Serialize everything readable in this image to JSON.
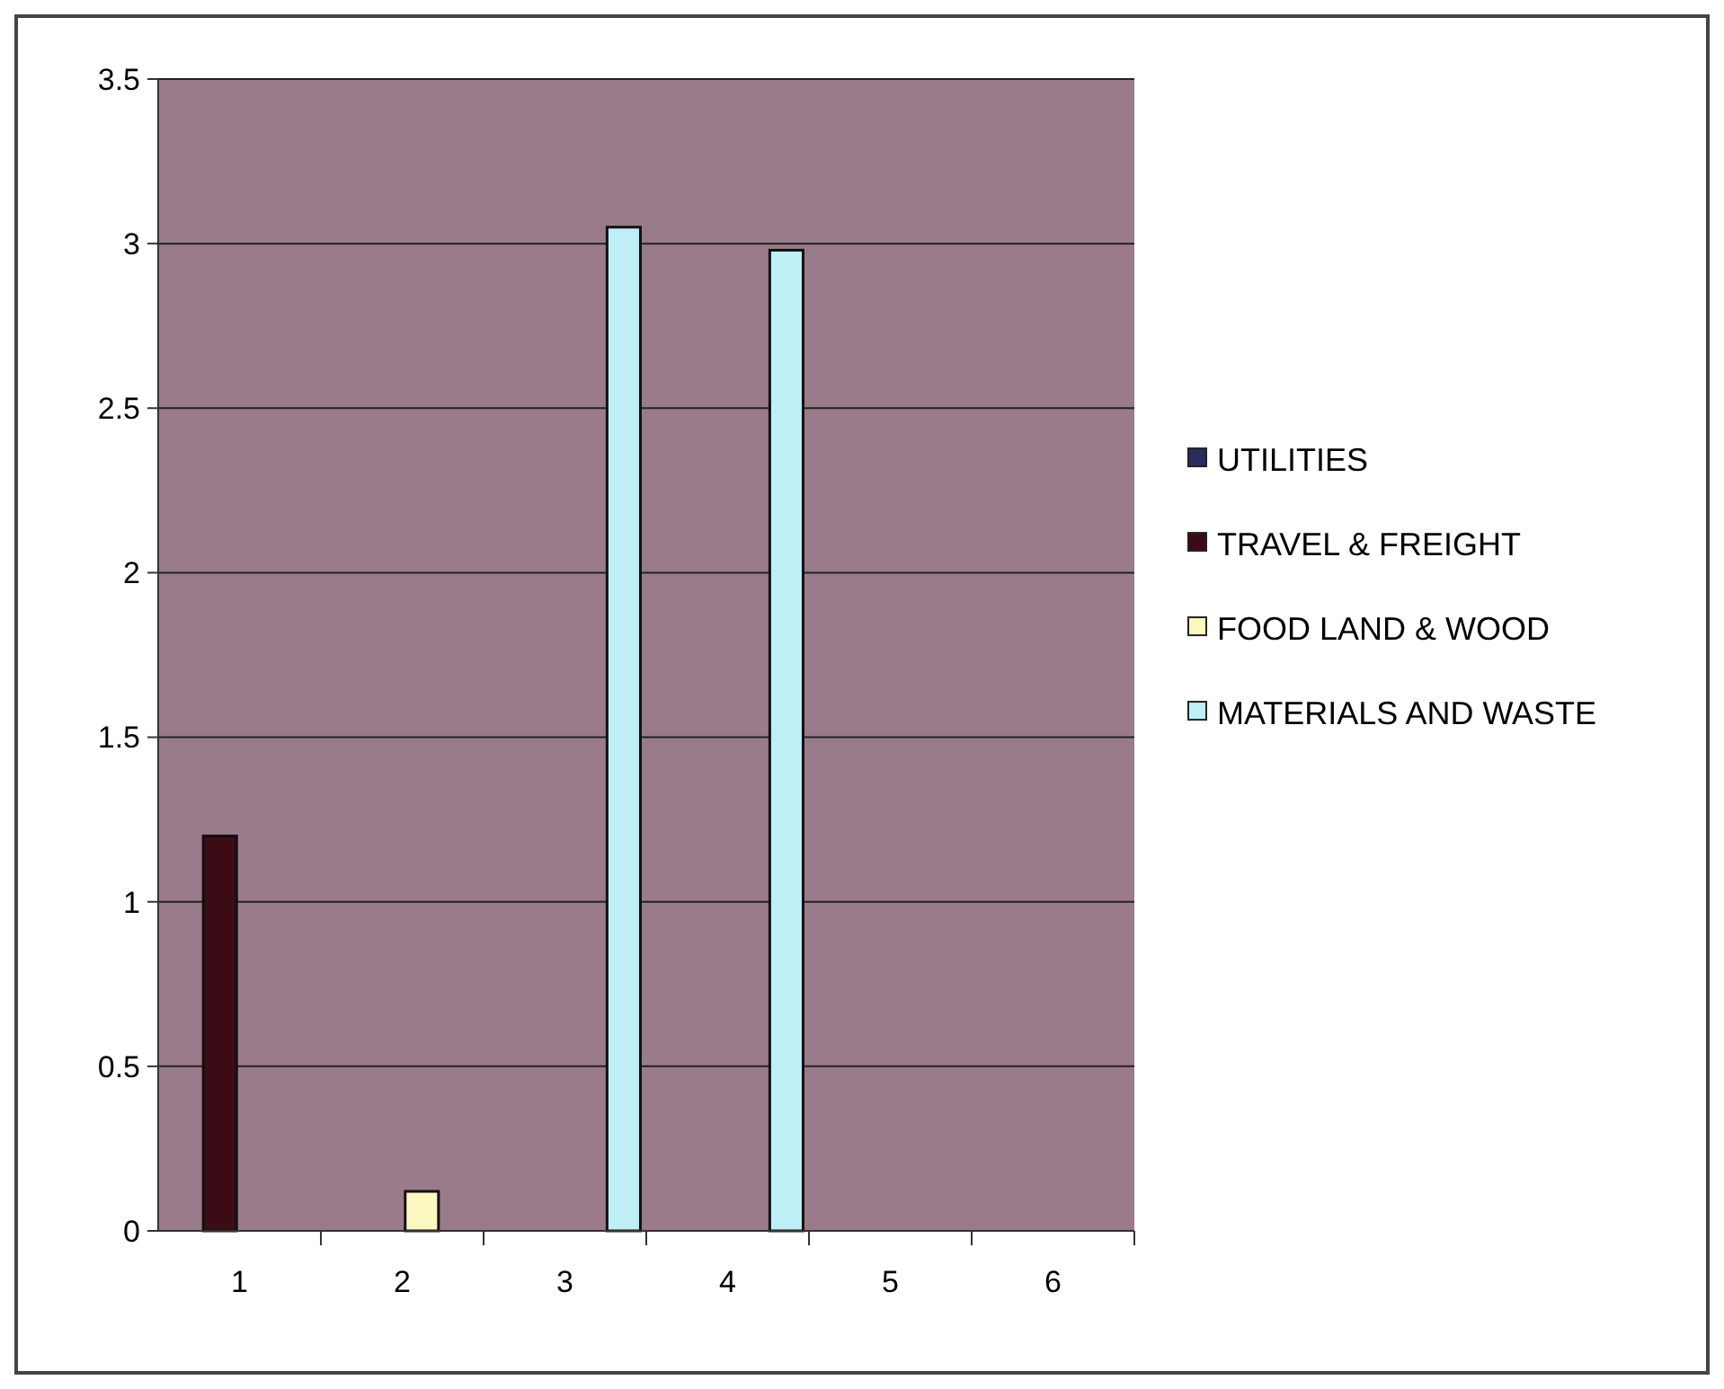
{
  "chart_data": {
    "type": "bar",
    "categories": [
      "1",
      "2",
      "3",
      "4",
      "5",
      "6"
    ],
    "series": [
      {
        "name": "UTILITIES",
        "color": "#2b2b5e",
        "values": [
          0,
          0,
          0,
          0,
          0,
          0
        ]
      },
      {
        "name": "TRAVEL & FREIGHT",
        "color": "#3c0c16",
        "values": [
          1.2,
          0,
          0,
          0,
          0,
          0
        ]
      },
      {
        "name": "FOOD LAND & WOOD",
        "color": "#fbf8bf",
        "values": [
          0,
          0.12,
          0,
          0,
          0,
          0
        ]
      },
      {
        "name": "MATERIALS AND WASTE",
        "color": "#bfeff6",
        "values": [
          0,
          0,
          3.05,
          2.98,
          0,
          0
        ]
      }
    ],
    "ylim": [
      0,
      3.5
    ],
    "yticks": [
      0,
      0.5,
      1,
      1.5,
      2,
      2.5,
      3,
      3.5
    ],
    "grid": "y",
    "legend": "right"
  }
}
